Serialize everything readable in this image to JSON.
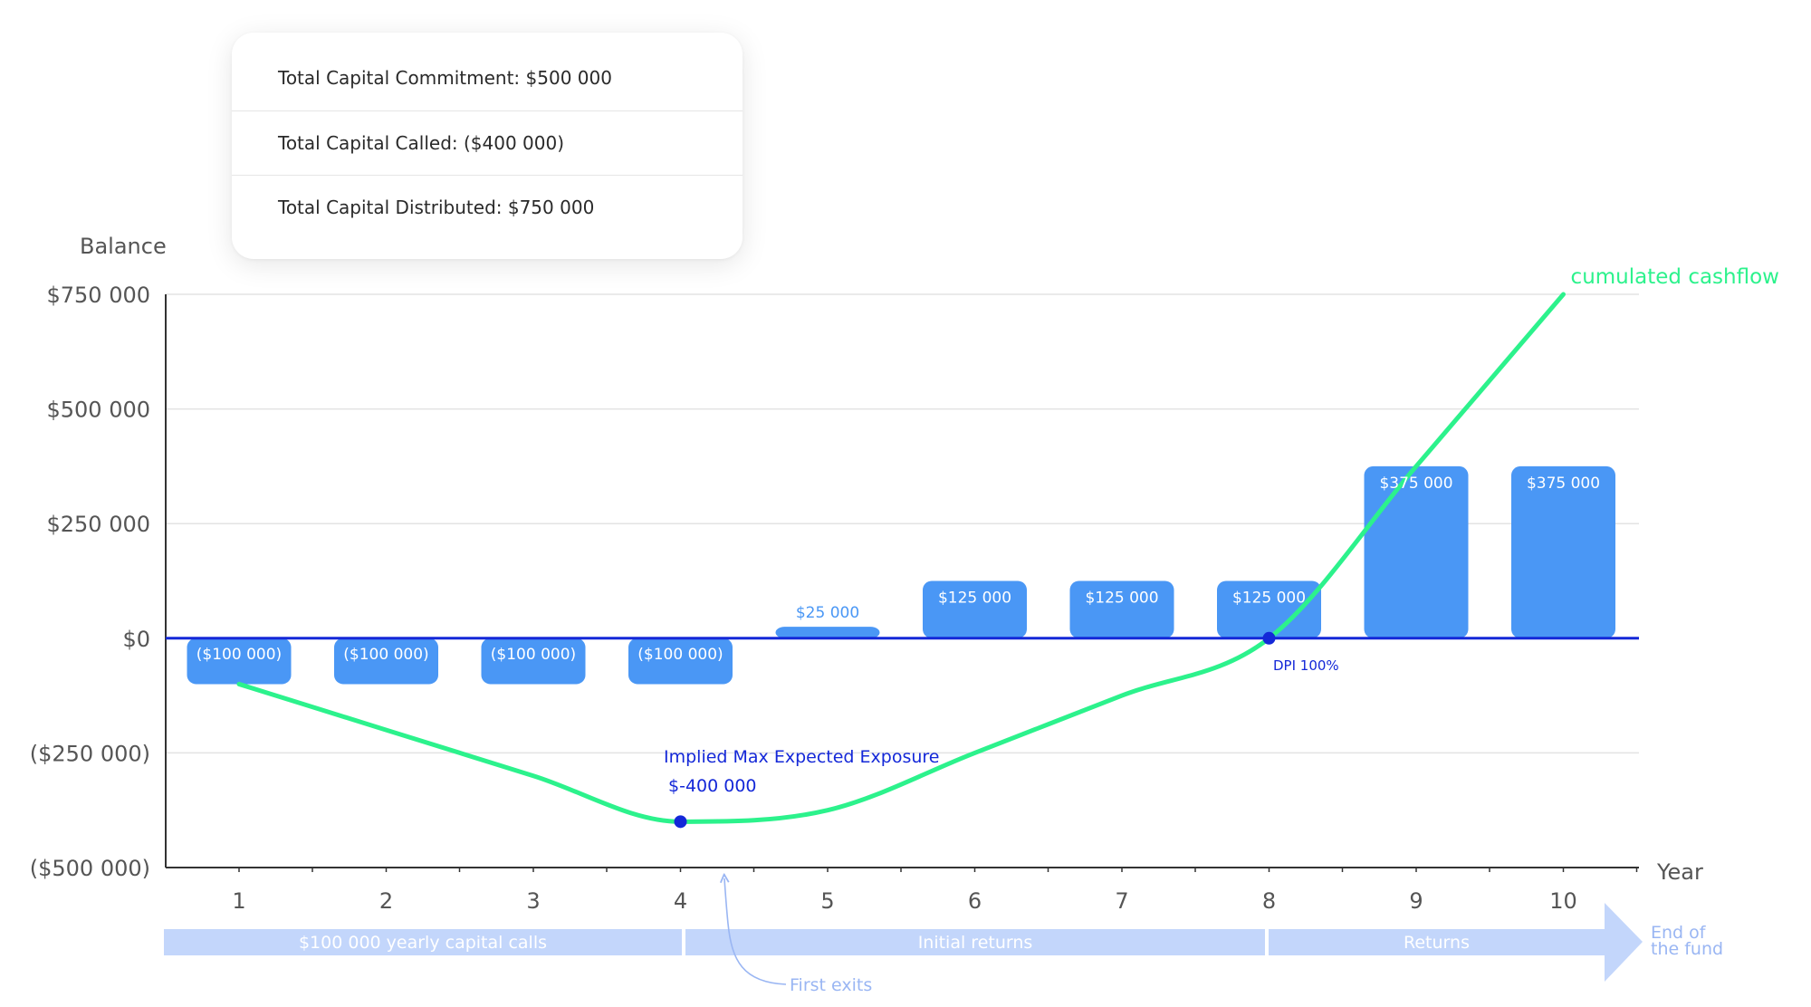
{
  "summary": {
    "commitment": "Total Capital Commitment: $500 000",
    "called": "Total Capital Called: ($400 000)",
    "distributed": "Total Capital Distributed: $750 000"
  },
  "chart_data": {
    "type": "bar",
    "ylabel": "Balance",
    "xlabel": "Year",
    "categories": [
      "1",
      "2",
      "3",
      "4",
      "5",
      "6",
      "7",
      "8",
      "9",
      "10"
    ],
    "ylim": [
      -500000,
      750000
    ],
    "yticks": [
      750000,
      500000,
      250000,
      0,
      -250000,
      -500000
    ],
    "ytick_labels": [
      "$750 000",
      "$500 000",
      "$250 000",
      "$0",
      "($250 000)",
      "($500 000)"
    ],
    "grid": true,
    "series": [
      {
        "values": [
          -100000,
          -100000,
          -100000,
          -100000,
          25000,
          125000,
          125000,
          125000,
          375000,
          375000
        ],
        "labels": [
          "($100 000)",
          "($100 000)",
          "($100 000)",
          "($100 000)",
          "$25 000",
          "$125 000",
          "$125 000",
          "$125 000",
          "$375 000",
          "$375 000"
        ],
        "color": "#4a97f5"
      },
      {
        "name": "cumulated cashflow",
        "type": "line",
        "values": [
          -100000,
          -200000,
          -300000,
          -400000,
          -375000,
          -250000,
          -125000,
          0,
          375000,
          750000
        ],
        "color": "#2cf28c"
      }
    ],
    "annotations": {
      "max_exposure_title": "Implied Max Expected Exposure",
      "max_exposure_value": "$-400 000",
      "dpi": "DPI 100%",
      "first_exits": "First exits"
    },
    "phases": [
      {
        "label": "$100 000 yearly capital calls"
      },
      {
        "label": "Initial returns"
      },
      {
        "label": "Returns"
      }
    ],
    "end_label_line1": "End of",
    "end_label_line2": "the fund",
    "colors": {
      "bar": "#4a97f5",
      "line": "#2cf28c",
      "zero_line": "#1428d8",
      "annotation": "#1428d8",
      "phase": "#c3d6fb",
      "phase_text": "#ffffff",
      "end_text": "#9ab6f3"
    }
  }
}
